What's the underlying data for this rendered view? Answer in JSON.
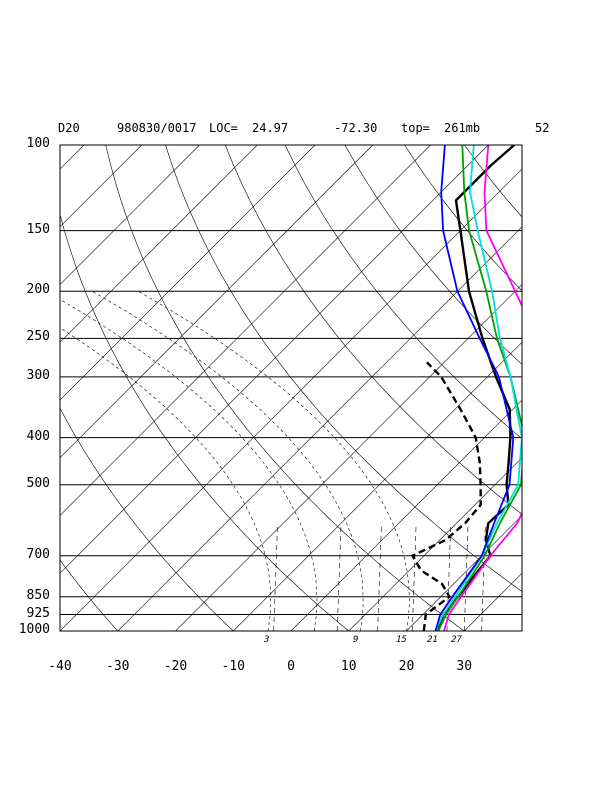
{
  "header": {
    "station": "D20",
    "datetime": "980830/0017",
    "loc_label": "LOC=",
    "lat": "24.97",
    "lon": "-72.30",
    "top_label": "top=",
    "top_value": "261mb",
    "number": "52"
  },
  "chart_data": {
    "type": "line",
    "title": "D20    980830/0017 LOC= 24.97   -72.30  top= 261mb",
    "xlabel": "",
    "ylabel": "",
    "pressure_levels": [
      "100",
      "150",
      "200",
      "250",
      "300",
      "400",
      "500",
      "700",
      "850",
      "925",
      "1000"
    ],
    "temperature_ticks": [
      "-40",
      "-30",
      "-20",
      "-10",
      "0",
      "10",
      "20",
      "30"
    ],
    "mixing_ratio_labels": [
      "3",
      "9",
      "15",
      "21",
      "27"
    ],
    "xlim": [
      -40,
      40
    ],
    "ylim_mb": [
      1000,
      100
    ],
    "y_scale": "log-pressure",
    "skewed_isotherms": true,
    "series": [
      {
        "color": "#000000",
        "style": "solid",
        "width": 2.4,
        "points": [
          [
            1000,
            25.5
          ],
          [
            925,
            23.5
          ],
          [
            850,
            23.0
          ],
          [
            800,
            22.5
          ],
          [
            750,
            22.0
          ],
          [
            700,
            21.5
          ],
          [
            650,
            18.0
          ],
          [
            600,
            15.5
          ],
          [
            550,
            15.8
          ],
          [
            500,
            12.0
          ],
          [
            450,
            8.5
          ],
          [
            400,
            4.5
          ],
          [
            350,
            -0.5
          ],
          [
            300,
            -8.5
          ],
          [
            250,
            -17.5
          ],
          [
            200,
            -28.0
          ],
          [
            150,
            -40.0
          ],
          [
            130,
            -46.0
          ],
          [
            110,
            -46.0
          ],
          [
            100,
            -45.5
          ]
        ]
      },
      {
        "color": "#000000",
        "style": "dashed",
        "width": 2.4,
        "points": [
          [
            1000,
            23.0
          ],
          [
            925,
            20.5
          ],
          [
            850,
            21.5
          ],
          [
            800,
            18.0
          ],
          [
            750,
            12.0
          ],
          [
            700,
            8.0
          ],
          [
            650,
            11.0
          ],
          [
            600,
            11.5
          ],
          [
            550,
            11.0
          ],
          [
            500,
            7.5
          ],
          [
            450,
            3.5
          ],
          [
            400,
            -1.5
          ],
          [
            350,
            -9.0
          ],
          [
            300,
            -18.0
          ],
          [
            280,
            -23.0
          ]
        ]
      },
      {
        "color": "#ff00ff",
        "style": "solid",
        "width": 1.8,
        "points": [
          [
            1000,
            26.5
          ],
          [
            925,
            24.5
          ],
          [
            850,
            23.5
          ],
          [
            700,
            21.5
          ],
          [
            600,
            20.5
          ],
          [
            500,
            17.0
          ],
          [
            400,
            10.5
          ],
          [
            300,
            0.5
          ],
          [
            250,
            -8.0
          ],
          [
            200,
            -20.0
          ],
          [
            150,
            -35.5
          ],
          [
            125,
            -42.5
          ],
          [
            100,
            -50.0
          ]
        ]
      },
      {
        "color": "#00a000",
        "style": "solid",
        "width": 1.8,
        "points": [
          [
            1000,
            25.5
          ],
          [
            925,
            24.0
          ],
          [
            850,
            23.0
          ],
          [
            700,
            20.5
          ],
          [
            600,
            17.5
          ],
          [
            500,
            14.5
          ],
          [
            400,
            7.0
          ],
          [
            300,
            -6.0
          ],
          [
            250,
            -15.0
          ],
          [
            200,
            -25.0
          ],
          [
            150,
            -38.5
          ],
          [
            125,
            -46.0
          ],
          [
            100,
            -54.5
          ]
        ]
      },
      {
        "color": "#00e0e0",
        "style": "solid",
        "width": 1.8,
        "points": [
          [
            1000,
            25.0
          ],
          [
            925,
            23.5
          ],
          [
            850,
            22.5
          ],
          [
            700,
            20.0
          ],
          [
            600,
            17.0
          ],
          [
            500,
            14.0
          ],
          [
            400,
            6.5
          ],
          [
            300,
            -6.0
          ],
          [
            250,
            -14.5
          ],
          [
            200,
            -24.0
          ],
          [
            150,
            -37.0
          ],
          [
            125,
            -45.0
          ],
          [
            100,
            -52.5
          ]
        ]
      },
      {
        "color": "#0000ff",
        "style": "solid",
        "width": 1.8,
        "points": [
          [
            1000,
            25.0
          ],
          [
            925,
            23.0
          ],
          [
            850,
            22.0
          ],
          [
            700,
            20.0
          ],
          [
            600,
            16.5
          ],
          [
            500,
            12.5
          ],
          [
            400,
            5.0
          ],
          [
            300,
            -8.0
          ],
          [
            250,
            -18.0
          ],
          [
            200,
            -30.0
          ],
          [
            150,
            -43.0
          ],
          [
            125,
            -50.0
          ],
          [
            100,
            -57.5
          ]
        ]
      }
    ]
  },
  "colors": {
    "background": "#ffffff",
    "axes": "#000000"
  }
}
